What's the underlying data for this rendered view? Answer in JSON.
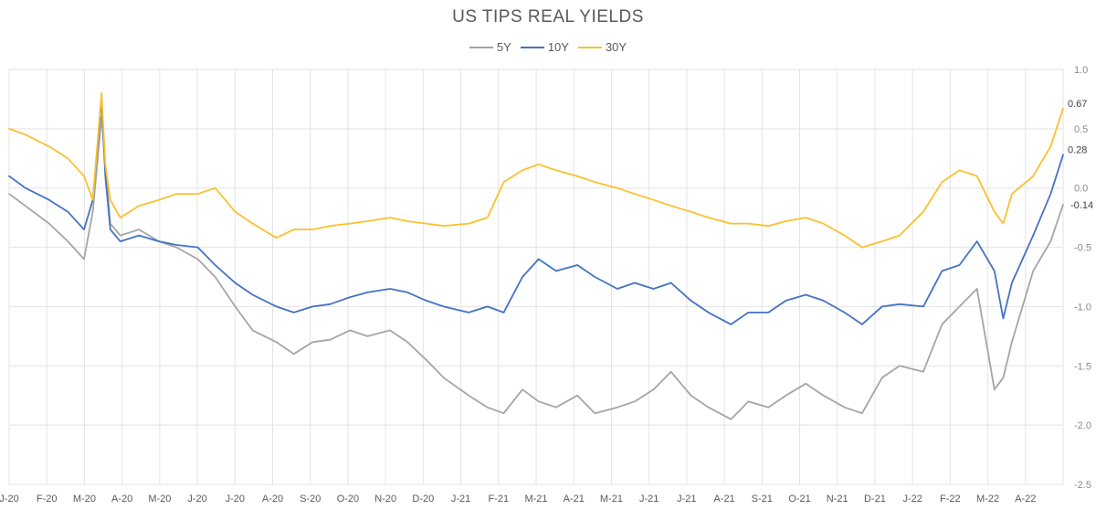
{
  "chart_data": {
    "type": "line",
    "title": "US TIPS REAL YIELDS",
    "xlabel": "",
    "ylabel": "",
    "ylim": [
      -2.5,
      1.0
    ],
    "y_ticks": [
      "1.0",
      "0.5",
      "0.0",
      "-0.5",
      "-1.0",
      "-1.5",
      "-2.0",
      "-2.5"
    ],
    "x_tick_labels": [
      "J-20",
      "F-20",
      "M-20",
      "A-20",
      "M-20",
      "J-20",
      "J-20",
      "A-20",
      "S-20",
      "O-20",
      "N-20",
      "D-20",
      "J-21",
      "F-21",
      "M-21",
      "A-21",
      "M-21",
      "J-21",
      "J-21",
      "A-21",
      "S-21",
      "O-21",
      "N-21",
      "D-21",
      "J-22",
      "F-22",
      "M-22",
      "A-22"
    ],
    "grid": true,
    "legend_position": "top-center",
    "x": [
      "2020-01-02",
      "2020-01-15",
      "2020-02-03",
      "2020-02-18",
      "2020-03-02",
      "2020-03-09",
      "2020-03-16",
      "2020-03-19",
      "2020-03-23",
      "2020-03-31",
      "2020-04-15",
      "2020-05-01",
      "2020-05-15",
      "2020-06-01",
      "2020-06-15",
      "2020-07-01",
      "2020-07-15",
      "2020-08-03",
      "2020-08-17",
      "2020-09-01",
      "2020-09-15",
      "2020-10-01",
      "2020-10-15",
      "2020-11-02",
      "2020-11-16",
      "2020-12-01",
      "2020-12-15",
      "2021-01-04",
      "2021-01-19",
      "2021-02-01",
      "2021-02-16",
      "2021-03-01",
      "2021-03-15",
      "2021-04-01",
      "2021-04-15",
      "2021-05-03",
      "2021-05-17",
      "2021-06-01",
      "2021-06-15",
      "2021-07-01",
      "2021-07-15",
      "2021-08-02",
      "2021-08-16",
      "2021-09-01",
      "2021-09-15",
      "2021-10-01",
      "2021-10-15",
      "2021-11-01",
      "2021-11-15",
      "2021-12-01",
      "2021-12-15",
      "2022-01-03",
      "2022-01-18",
      "2022-02-01",
      "2022-02-15",
      "2022-03-01",
      "2022-03-08",
      "2022-03-15",
      "2022-04-01",
      "2022-04-15",
      "2022-04-25"
    ],
    "series": [
      {
        "name": "5Y",
        "color": "#a5a5a5",
        "end_label": "",
        "values": [
          -0.05,
          -0.15,
          -0.3,
          -0.45,
          -0.6,
          -0.2,
          0.6,
          0.2,
          -0.3,
          -0.4,
          -0.35,
          -0.45,
          -0.5,
          -0.6,
          -0.75,
          -1.0,
          -1.2,
          -1.3,
          -1.4,
          -1.3,
          -1.28,
          -1.2,
          -1.25,
          -1.2,
          -1.3,
          -1.45,
          -1.6,
          -1.75,
          -1.85,
          -1.9,
          -1.7,
          -1.8,
          -1.85,
          -1.75,
          -1.9,
          -1.85,
          -1.8,
          -1.7,
          -1.55,
          -1.75,
          -1.85,
          -1.95,
          -1.8,
          -1.85,
          -1.75,
          -1.65,
          -1.75,
          -1.85,
          -1.9,
          -1.6,
          -1.5,
          -1.55,
          -1.15,
          -1.0,
          -0.85,
          -1.7,
          -1.6,
          -1.3,
          -0.7,
          -0.45,
          -0.14
        ]
      },
      {
        "name": "10Y",
        "color": "#4472c4",
        "end_label": "0.28",
        "values": [
          0.1,
          0.0,
          -0.1,
          -0.2,
          -0.35,
          -0.1,
          0.75,
          0.1,
          -0.35,
          -0.45,
          -0.4,
          -0.45,
          -0.48,
          -0.5,
          -0.65,
          -0.8,
          -0.9,
          -1.0,
          -1.05,
          -1.0,
          -0.98,
          -0.92,
          -0.88,
          -0.85,
          -0.88,
          -0.95,
          -1.0,
          -1.05,
          -1.0,
          -1.05,
          -0.75,
          -0.6,
          -0.7,
          -0.65,
          -0.75,
          -0.85,
          -0.8,
          -0.85,
          -0.8,
          -0.95,
          -1.05,
          -1.15,
          -1.05,
          -1.05,
          -0.95,
          -0.9,
          -0.95,
          -1.05,
          -1.15,
          -1.0,
          -0.98,
          -1.0,
          -0.7,
          -0.65,
          -0.45,
          -0.7,
          -1.1,
          -0.8,
          -0.4,
          -0.05,
          0.28
        ]
      },
      {
        "name": "30Y",
        "color": "#fbc02d",
        "end_label": "0.67",
        "values": [
          0.5,
          0.45,
          0.35,
          0.25,
          0.1,
          -0.1,
          0.8,
          0.2,
          -0.1,
          -0.25,
          -0.15,
          -0.1,
          -0.05,
          -0.05,
          0.0,
          -0.2,
          -0.3,
          -0.42,
          -0.35,
          -0.35,
          -0.32,
          -0.3,
          -0.28,
          -0.25,
          -0.28,
          -0.3,
          -0.32,
          -0.3,
          -0.25,
          0.05,
          0.15,
          0.2,
          0.15,
          0.1,
          0.05,
          0.0,
          -0.05,
          -0.1,
          -0.15,
          -0.2,
          -0.25,
          -0.3,
          -0.3,
          -0.32,
          -0.28,
          -0.25,
          -0.3,
          -0.4,
          -0.5,
          -0.45,
          -0.4,
          -0.2,
          0.05,
          0.15,
          0.1,
          -0.2,
          -0.3,
          -0.05,
          0.1,
          0.35,
          0.67
        ]
      }
    ],
    "extra_end_label": "-0.14"
  }
}
